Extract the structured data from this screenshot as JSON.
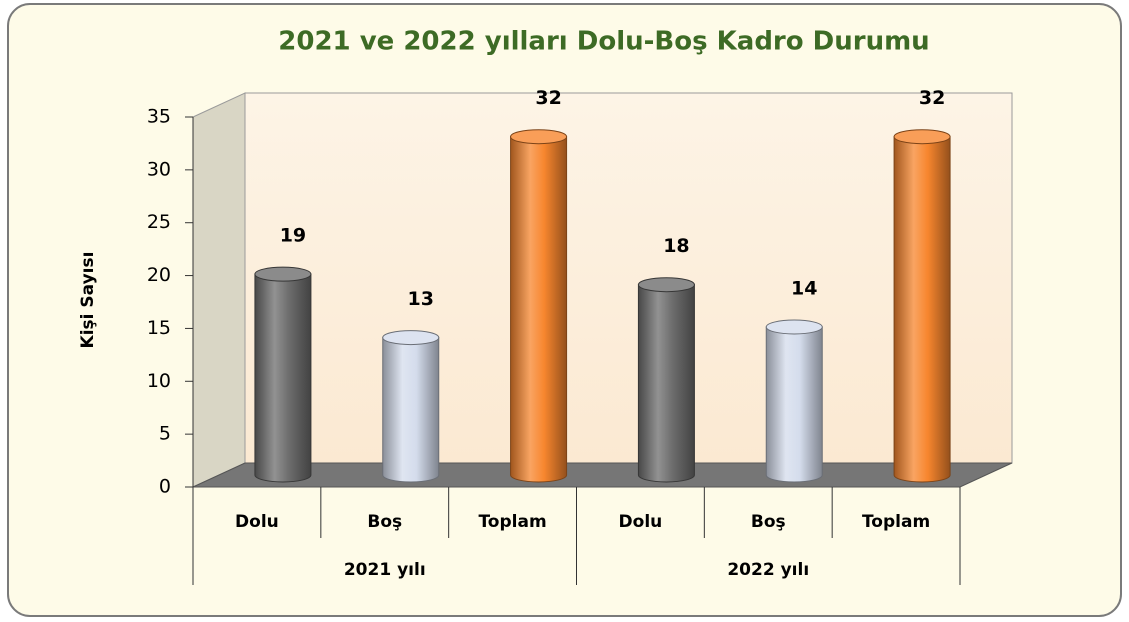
{
  "chart_data": {
    "type": "bar",
    "title": "2021 ve 2022 yılları Dolu-Boş Kadro Durumu",
    "y_label": "Kişi Sayısı",
    "categories": [
      "Dolu",
      "Boş",
      "Toplam",
      "Dolu",
      "Boş",
      "Toplam"
    ],
    "groups": [
      "2021 yılı",
      "2022 yılı"
    ],
    "values": [
      19,
      13,
      32,
      18,
      14,
      32
    ],
    "colors": [
      "#6e6e6e",
      "#d4dcec",
      "#f7862e",
      "#6e6e6e",
      "#d4dcec",
      "#f7862e"
    ],
    "ylim": [
      0,
      35
    ],
    "yticks": [
      0,
      5,
      10,
      15,
      20,
      25,
      30,
      35
    ],
    "grid": false
  }
}
